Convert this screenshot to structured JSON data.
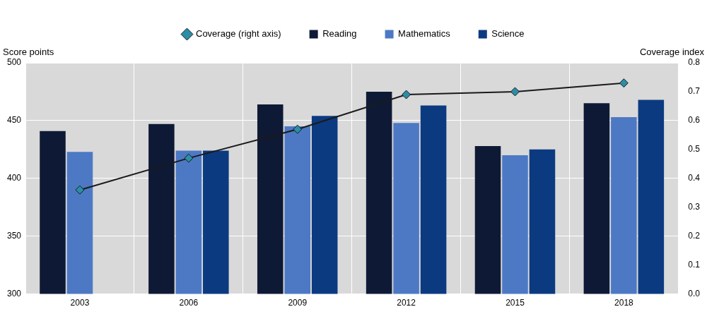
{
  "chart_data": {
    "type": "bar",
    "y_label": "Score points",
    "y2_label": "Coverage index",
    "categories": [
      "2003",
      "2006",
      "2009",
      "2012",
      "2015",
      "2018"
    ],
    "series": [
      {
        "name": "Reading",
        "type": "bar",
        "color": "#0e1a35",
        "values": [
          441,
          447,
          464,
          475,
          428,
          465
        ]
      },
      {
        "name": "Mathematics",
        "type": "bar",
        "color": "#4d79c4",
        "values": [
          423,
          424,
          445,
          448,
          420,
          453
        ]
      },
      {
        "name": "Science",
        "type": "bar",
        "color": "#0c3a80",
        "values": [
          null,
          424,
          454,
          463,
          425,
          468
        ]
      },
      {
        "name": "Coverage (right axis)",
        "type": "line",
        "axis": "y2",
        "color": "#2b8da6",
        "marker": "diamond",
        "values": [
          0.36,
          0.47,
          0.57,
          0.69,
          0.7,
          0.73
        ]
      }
    ],
    "ylim": [
      300,
      500
    ],
    "yticks": [
      300,
      350,
      400,
      450,
      500
    ],
    "y2lim": [
      0,
      0.8
    ],
    "y2ticks": [
      {
        "value": 0,
        "label": "0.0"
      },
      0.1,
      0.2,
      0.3,
      0.4,
      0.5,
      0.6,
      0.7,
      0.8
    ],
    "grid": true,
    "legend": "top"
  }
}
